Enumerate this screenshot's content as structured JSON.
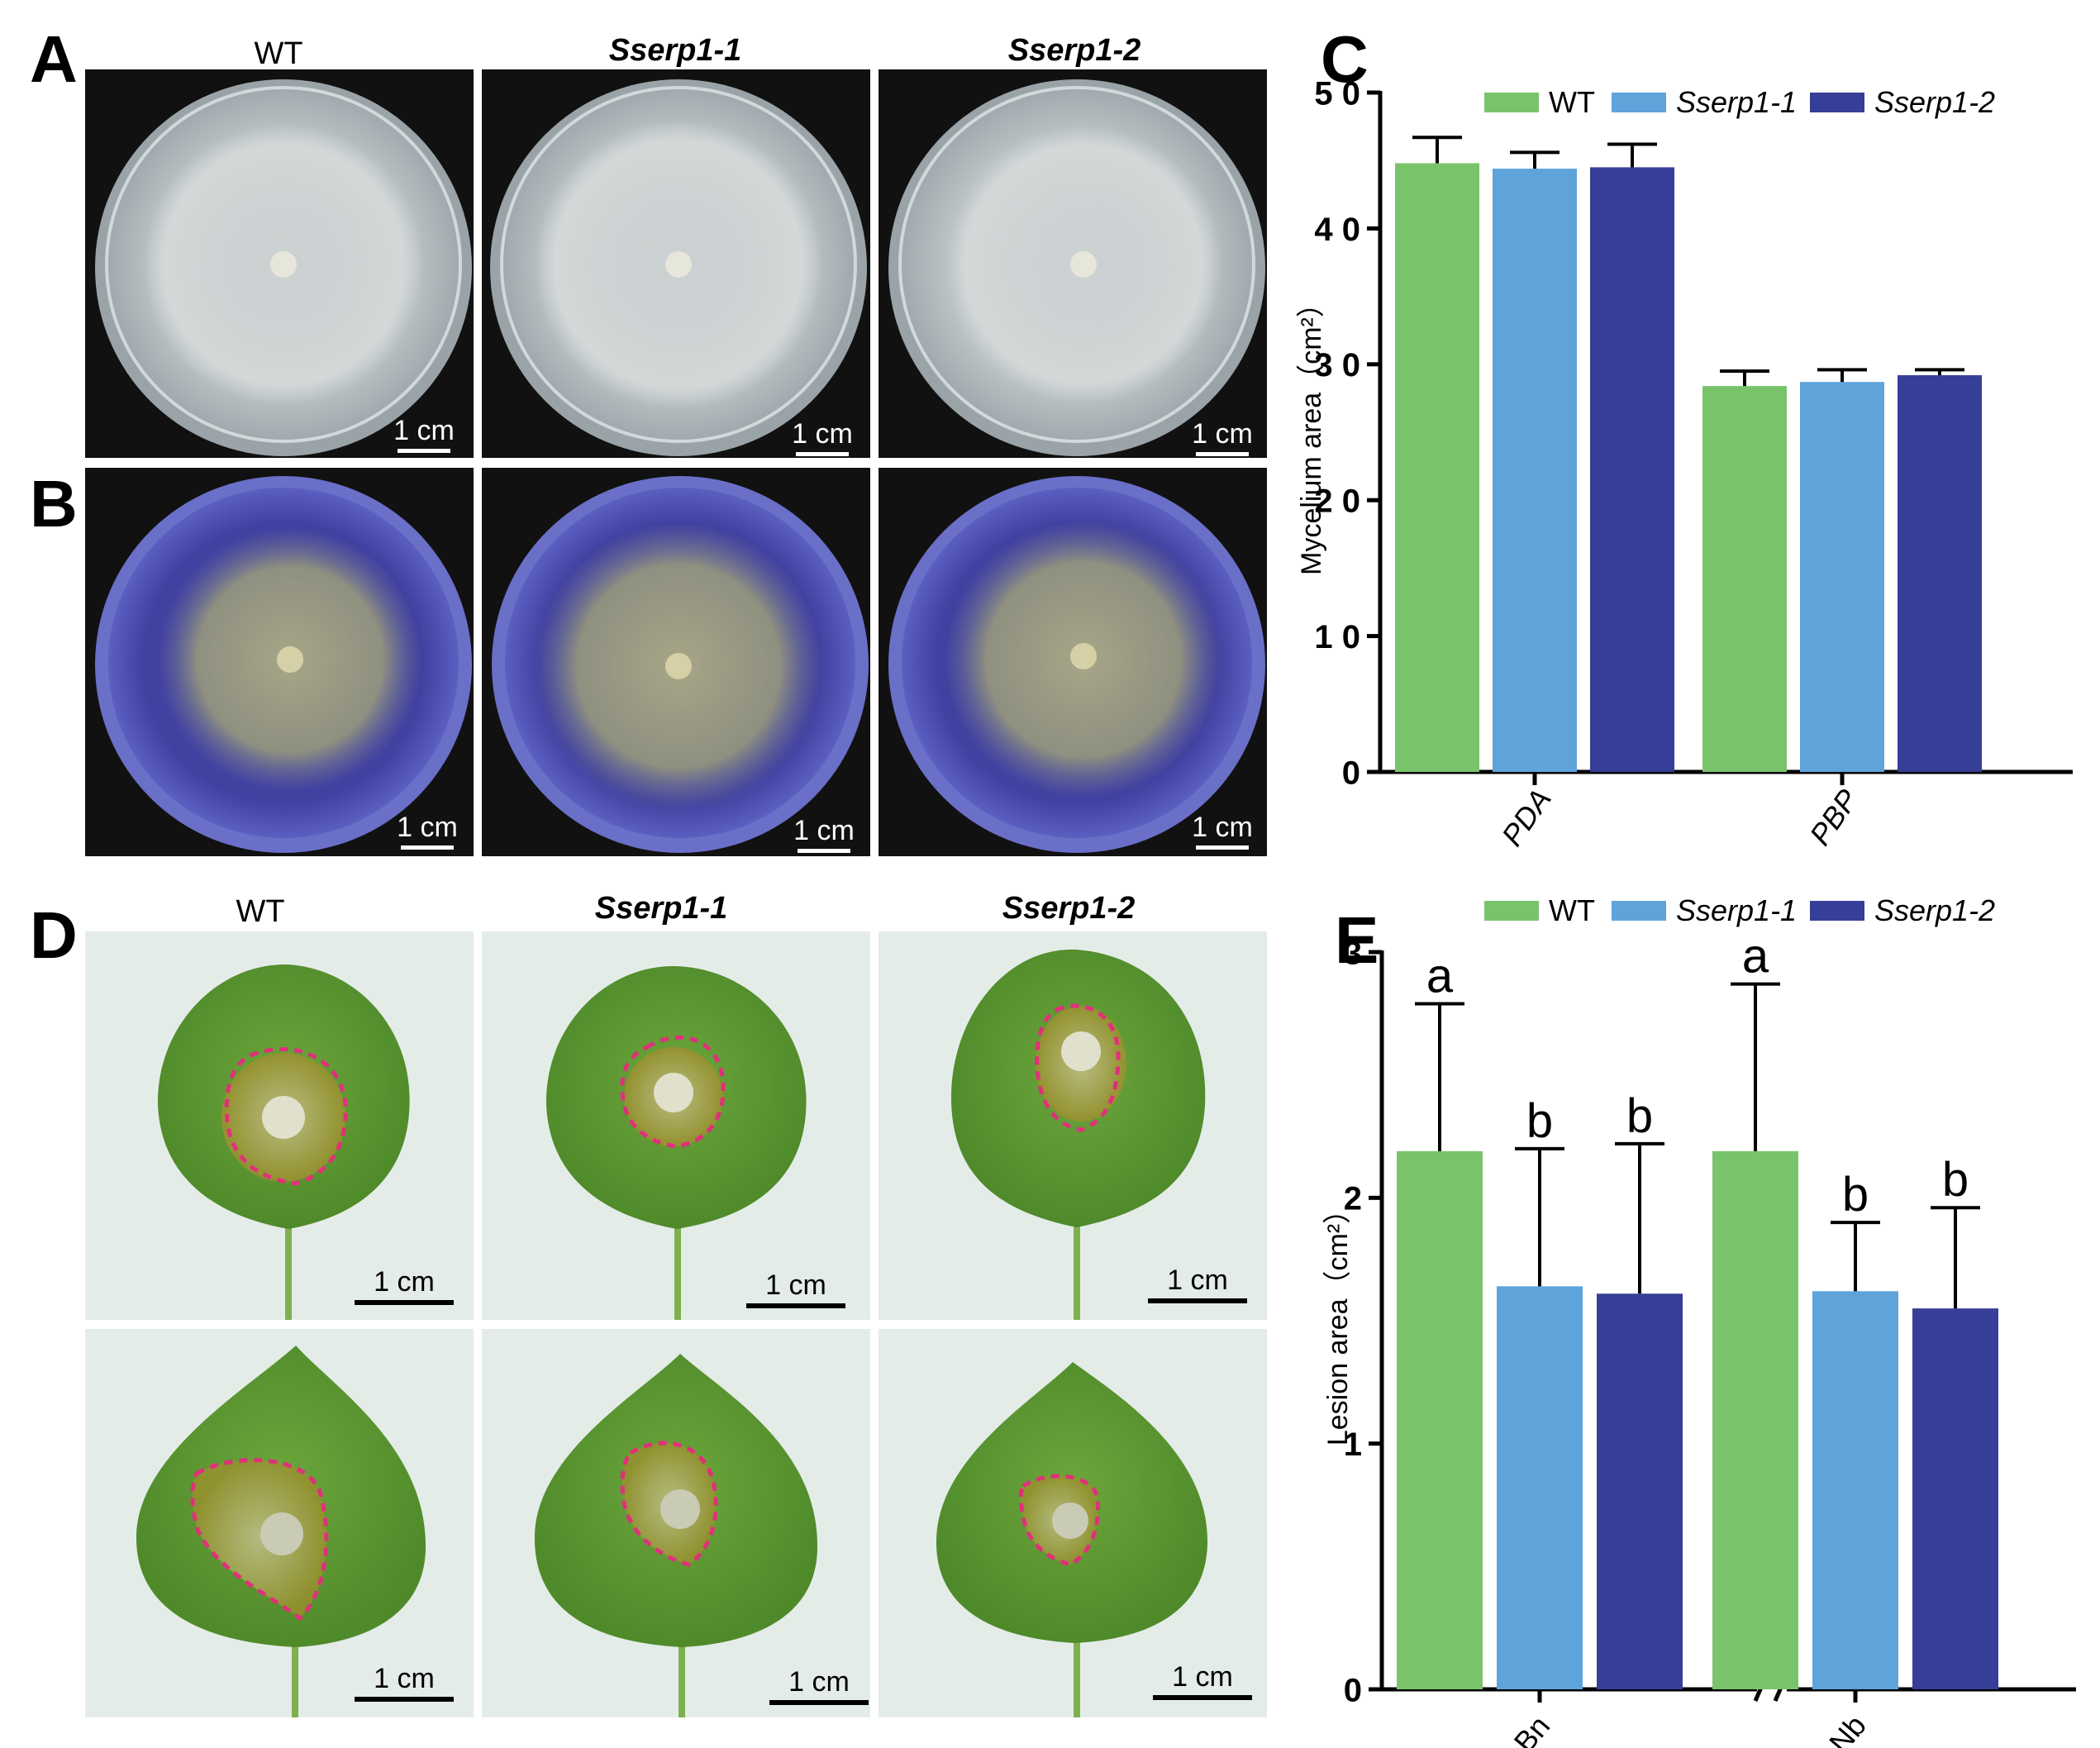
{
  "panels": {
    "A": "A",
    "B": "B",
    "C": "C",
    "D": "D",
    "E": "E"
  },
  "columns": [
    "WT",
    "Sserp1-1",
    "Sserp1-2"
  ],
  "scale_label": "1 cm",
  "colors": {
    "wt": "#79c46b",
    "sserp1_1": "#5fa3db",
    "sserp1_2": "#363e97",
    "lesion_outline": "#e0307a"
  },
  "chart_data": [
    {
      "type": "bar",
      "panel": "C",
      "categories": [
        "PDA",
        "PBP"
      ],
      "series": [
        {
          "name": "WT",
          "values": [
            44.8,
            28.4
          ],
          "errors": [
            1.9,
            1.1
          ]
        },
        {
          "name": "Sserp1-1",
          "values": [
            44.4,
            28.7
          ],
          "errors": [
            1.2,
            0.9
          ]
        },
        {
          "name": "Sserp1-2",
          "values": [
            44.5,
            29.2
          ],
          "errors": [
            1.7,
            0.4
          ]
        }
      ],
      "ylabel": "Mycelium area（cm²）",
      "ylim": [
        0,
        50
      ],
      "yticks": [
        "0",
        "1 0",
        "2 0",
        "3 0",
        "4 0",
        "5 0"
      ],
      "legend": "top"
    },
    {
      "type": "bar",
      "panel": "E",
      "categories": [
        "Bn",
        "Nb"
      ],
      "series": [
        {
          "name": "WT",
          "values": [
            2.19,
            2.19
          ],
          "errors": [
            0.6,
            0.68
          ],
          "letters": [
            "a",
            "a"
          ]
        },
        {
          "name": "Sserp1-1",
          "values": [
            1.64,
            1.62
          ],
          "errors": [
            0.56,
            0.28
          ],
          "letters": [
            "b",
            "b"
          ]
        },
        {
          "name": "Sserp1-2",
          "values": [
            1.61,
            1.55
          ],
          "errors": [
            0.61,
            0.41
          ],
          "letters": [
            "b",
            "b"
          ]
        }
      ],
      "ylabel": "Lesion area（cm²）",
      "ylim": [
        0,
        3
      ],
      "yticks": [
        "0",
        "1",
        "2",
        "3"
      ],
      "axis_break": true,
      "legend": "top"
    }
  ]
}
